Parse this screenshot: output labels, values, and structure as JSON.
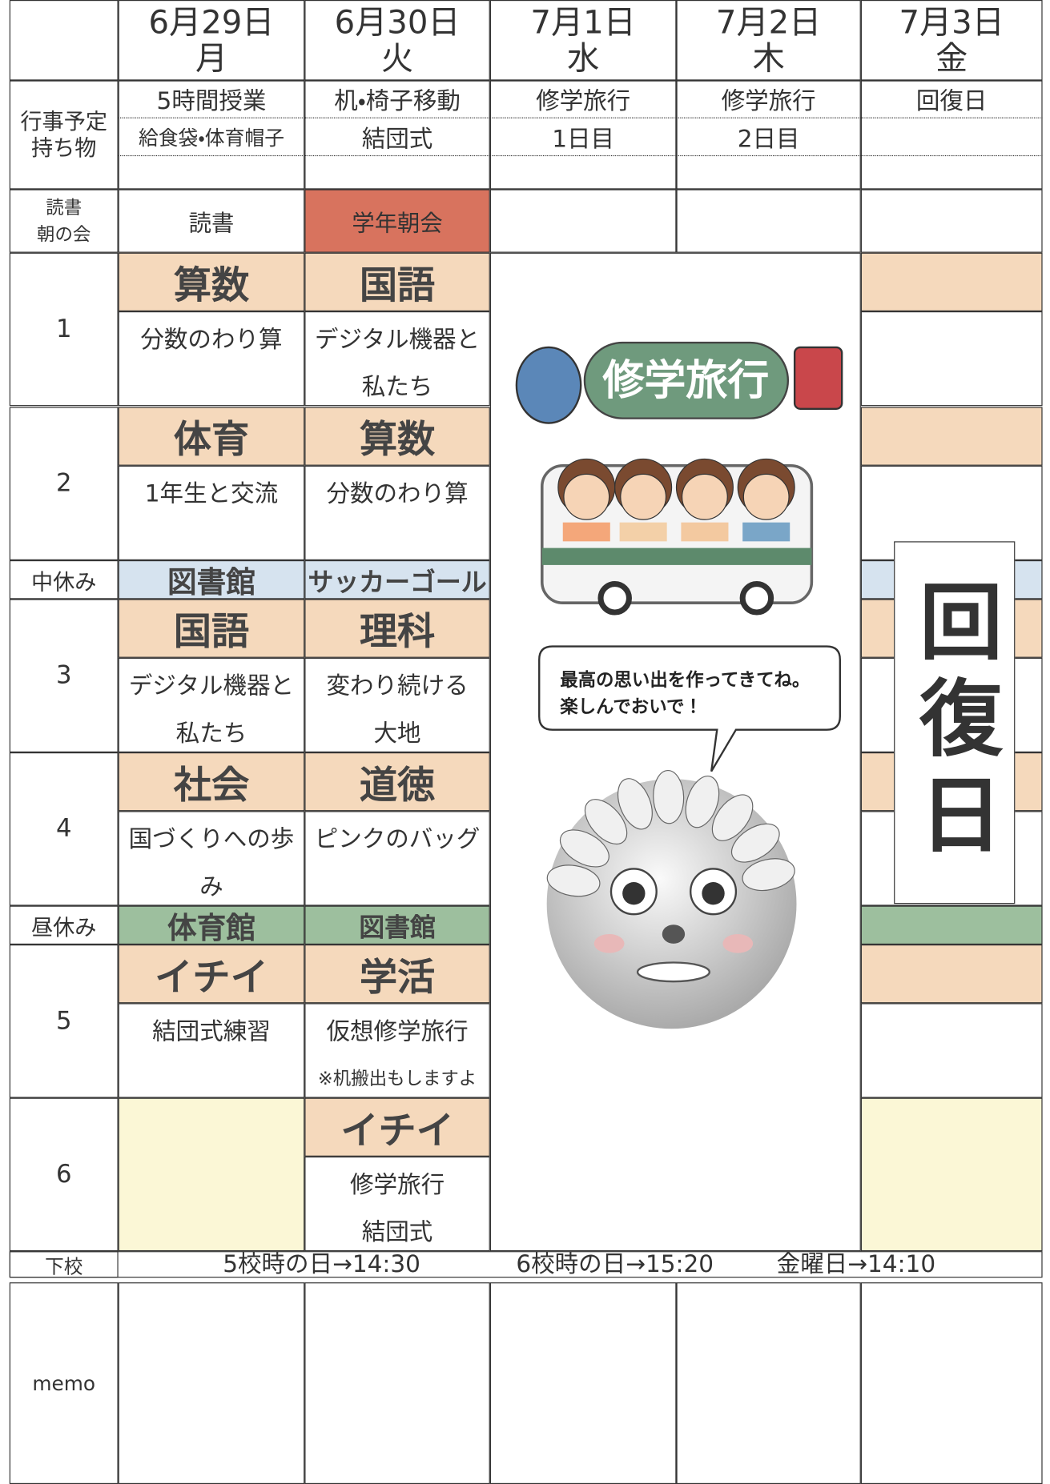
{
  "row_labels": {
    "events": [
      "行事予定",
      "持ち物"
    ],
    "reading": [
      "読書",
      "朝の会"
    ],
    "periods": [
      "1",
      "2",
      "3",
      "4",
      "5",
      "6"
    ],
    "break_mid": "中休み",
    "break_lunch": "昼休み",
    "dismissal": "下校",
    "memo": "memo"
  },
  "days": [
    {
      "date": "6月29日",
      "weekday": "月",
      "events": [
        "5時間授業",
        "給食袋・体育帽子"
      ],
      "reading": "読書",
      "periods": [
        {
          "subject": "算数",
          "content": [
            "分数のわり算"
          ]
        },
        {
          "subject": "体育",
          "content": [
            "1年生と交流"
          ]
        },
        {
          "subject": "国語",
          "content": [
            "デジタル機器と",
            "私たち"
          ]
        },
        {
          "subject": "社会",
          "content": [
            "国づくりへの歩み"
          ]
        },
        {
          "subject": "イチイ",
          "content": [
            "結団式練習"
          ]
        },
        null
      ],
      "break_mid": "図書館",
      "break_lunch": "体育館"
    },
    {
      "date": "6月30日",
      "weekday": "火",
      "events": [
        "机・椅子移動",
        "結団式"
      ],
      "reading": "学年朝会",
      "periods": [
        {
          "subject": "国語",
          "content": [
            "デジタル機器と",
            "私たち"
          ]
        },
        {
          "subject": "算数",
          "content": [
            "分数のわり算"
          ]
        },
        {
          "subject": "理科",
          "content": [
            "変わり続ける",
            "大地"
          ]
        },
        {
          "subject": "道徳",
          "content": [
            "ピンクのバッグ"
          ]
        },
        {
          "subject": "学活",
          "content": [
            "仮想修学旅行",
            "※机搬出もしますよ"
          ]
        },
        {
          "subject": "イチイ",
          "content": [
            "修学旅行",
            "結団式"
          ]
        }
      ],
      "break_mid": "サッカーゴール",
      "break_lunch": "図書館"
    },
    {
      "date": "7月1日",
      "weekday": "水",
      "events": [
        "修学旅行",
        "1日目"
      ]
    },
    {
      "date": "7月2日",
      "weekday": "木",
      "events": [
        "修学旅行",
        "2日目"
      ]
    },
    {
      "date": "7月3日",
      "weekday": "金",
      "events": [
        "回復日"
      ]
    }
  ],
  "trip": {
    "banner": "修学旅行",
    "bubble": [
      "最高の思い出を作ってきてね。",
      "楽しんでおいで！"
    ]
  },
  "friday_note": "回復日",
  "dismissal": [
    "5校時の日→14:30",
    "6校時の日→15:20",
    "金曜日→14:10"
  ]
}
